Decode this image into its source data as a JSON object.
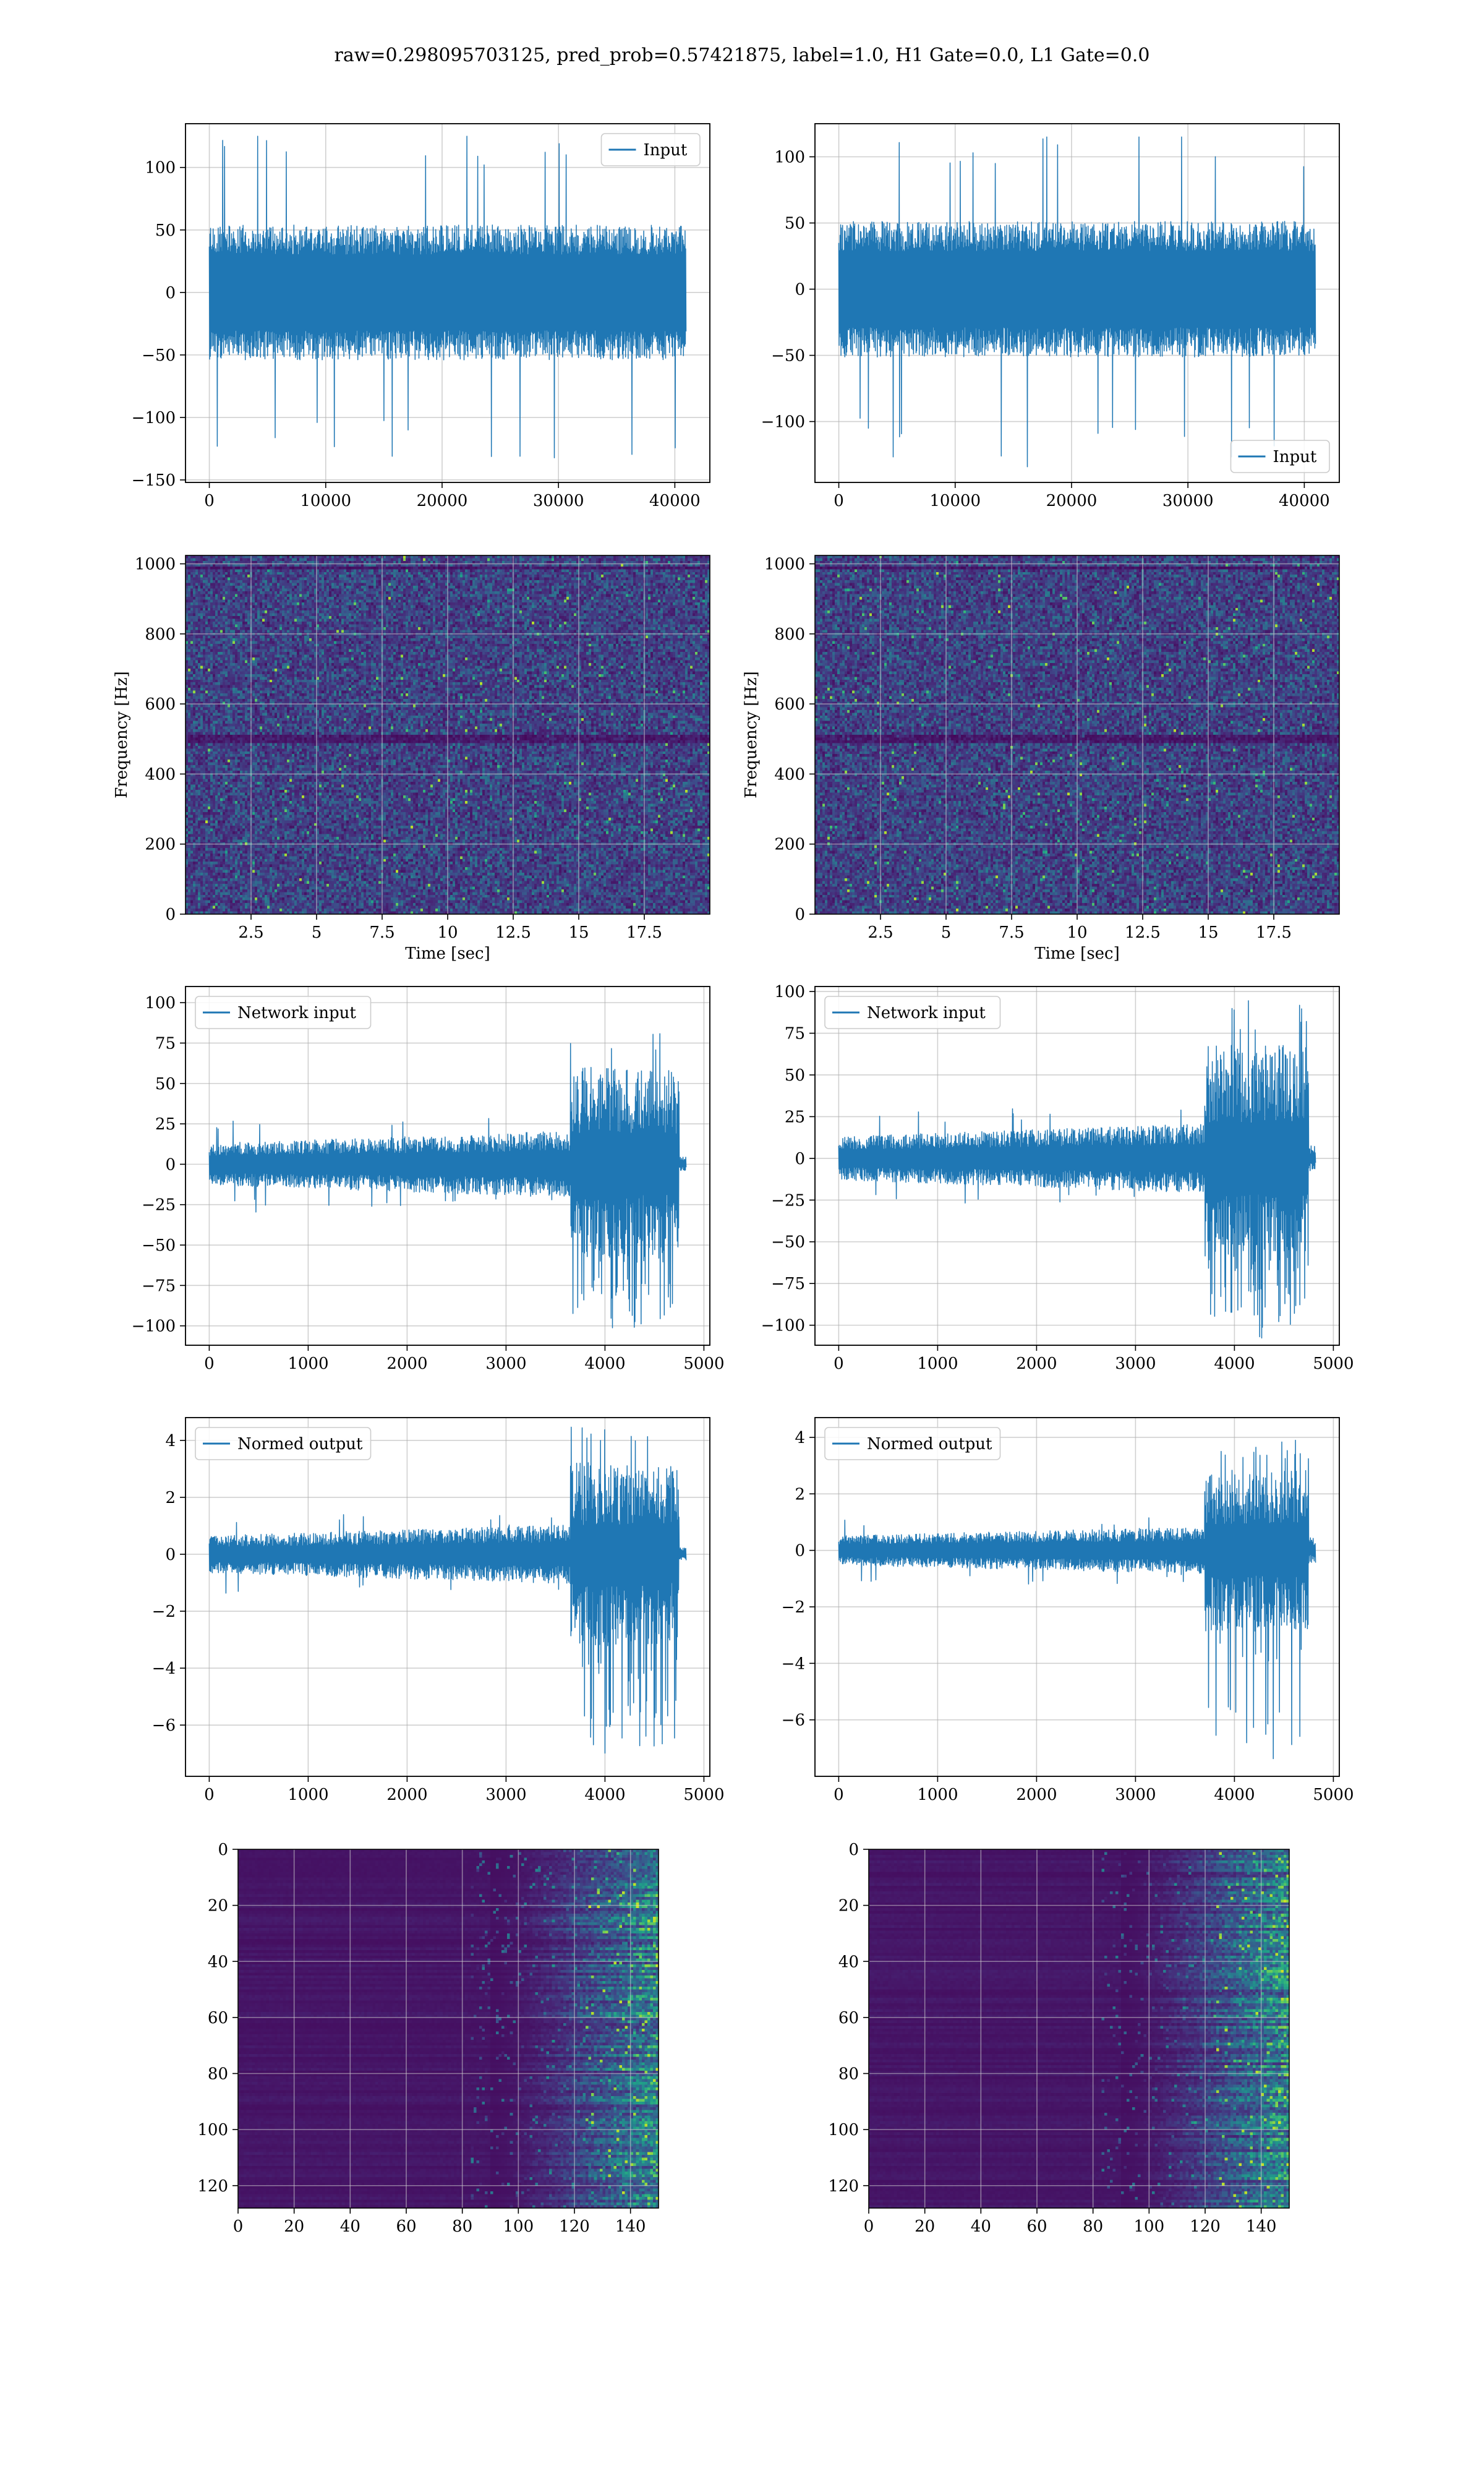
{
  "figure": {
    "suptitle": "raw=0.298095703125, pred_prob=0.57421875, label=1.0, H1 Gate=0.0, L1 Gate=0.0"
  },
  "colors": {
    "line": "#1f77b4",
    "grid": "#b0b0b0",
    "viridis_dark": "#440154",
    "viridis_mid": "#31688e",
    "viridis_teal": "#21918c",
    "viridis_green": "#35b779",
    "viridis_yellow": "#fde725"
  },
  "chart_data": [
    {
      "id": "h1-input",
      "type": "line",
      "legend": "Input",
      "legend_loc": "top-right",
      "grid": true,
      "x_range": [
        0,
        40960
      ],
      "xlim": [
        -2048,
        43008
      ],
      "ylim": [
        -152,
        135
      ],
      "xticks": [
        0,
        10000,
        20000,
        30000,
        40000
      ],
      "yticks": [
        -150,
        -100,
        -50,
        0,
        50,
        100
      ],
      "signal": {
        "kind": "noise",
        "spread": 40,
        "peak_max": 125,
        "peak_min": -140,
        "points": 1500
      }
    },
    {
      "id": "l1-input",
      "type": "line",
      "legend": "Input",
      "legend_loc": "bottom-right",
      "grid": true,
      "x_range": [
        0,
        40960
      ],
      "xlim": [
        -2048,
        43008
      ],
      "ylim": [
        -146,
        125
      ],
      "xticks": [
        0,
        10000,
        20000,
        30000,
        40000
      ],
      "yticks": [
        -100,
        -50,
        0,
        50,
        100
      ],
      "signal": {
        "kind": "noise",
        "spread": 38,
        "peak_max": 115,
        "peak_min": -135,
        "points": 1500
      }
    },
    {
      "id": "h1-spectrogram",
      "type": "heatmap",
      "grid": true,
      "xlabel": "Time [sec]",
      "ylabel": "Frequency [Hz]",
      "xlim": [
        0,
        20
      ],
      "ylim": [
        0,
        1024
      ],
      "xticks": [
        2.5,
        5.0,
        7.5,
        10.0,
        12.5,
        15.0,
        17.5
      ],
      "yticks": [
        0,
        200,
        400,
        600,
        800,
        1000
      ]
    },
    {
      "id": "l1-spectrogram",
      "type": "heatmap",
      "grid": true,
      "xlabel": "Time [sec]",
      "ylabel": "Frequency [Hz]",
      "xlim": [
        0,
        20
      ],
      "ylim": [
        0,
        1024
      ],
      "xticks": [
        2.5,
        5.0,
        7.5,
        10.0,
        12.5,
        15.0,
        17.5
      ],
      "yticks": [
        0,
        200,
        400,
        600,
        800,
        1000
      ]
    },
    {
      "id": "h1-network-input",
      "type": "line",
      "legend": "Network input",
      "legend_loc": "top-left",
      "grid": true,
      "x_range": [
        0,
        4820
      ],
      "xlim": [
        -240,
        5060
      ],
      "ylim": [
        -112,
        110
      ],
      "xticks": [
        0,
        1000,
        2000,
        3000,
        4000,
        5000
      ],
      "yticks": [
        -100,
        -75,
        -50,
        -25,
        0,
        25,
        50,
        75,
        100
      ],
      "signal": {
        "kind": "burst",
        "base": 10,
        "base_peak": 30,
        "burst_start": 3650,
        "burst_end": 4750,
        "burst_peak": 85,
        "burst_min": -102,
        "tail": 3,
        "points": 1400
      }
    },
    {
      "id": "l1-network-input",
      "type": "line",
      "legend": "Network input",
      "legend_loc": "top-left",
      "grid": true,
      "x_range": [
        0,
        4820
      ],
      "xlim": [
        -240,
        5060
      ],
      "ylim": [
        -112,
        103
      ],
      "xticks": [
        0,
        1000,
        2000,
        3000,
        4000,
        5000
      ],
      "yticks": [
        -100,
        -75,
        -50,
        -25,
        0,
        25,
        50,
        75,
        100
      ],
      "signal": {
        "kind": "burst",
        "base": 10,
        "base_peak": 30,
        "burst_start": 3700,
        "burst_end": 4750,
        "burst_peak": 95,
        "burst_min": -108,
        "tail": 5,
        "points": 1400
      }
    },
    {
      "id": "h1-normed-output",
      "type": "line",
      "legend": "Normed output",
      "legend_loc": "top-left",
      "grid": true,
      "x_range": [
        0,
        4820
      ],
      "xlim": [
        -240,
        5060
      ],
      "ylim": [
        -7.8,
        4.8
      ],
      "xticks": [
        0,
        1000,
        2000,
        3000,
        4000,
        5000
      ],
      "yticks": [
        -6,
        -4,
        -2,
        0,
        2,
        4
      ],
      "signal": {
        "kind": "burst",
        "base": 0.5,
        "base_peak": 1.4,
        "burst_start": 3650,
        "burst_end": 4750,
        "burst_peak": 4.5,
        "burst_min": -7.3,
        "tail": 0.15,
        "points": 1400
      }
    },
    {
      "id": "l1-normed-output",
      "type": "line",
      "legend": "Normed output",
      "legend_loc": "top-left",
      "grid": true,
      "x_range": [
        0,
        4820
      ],
      "xlim": [
        -240,
        5060
      ],
      "ylim": [
        -8.0,
        4.7
      ],
      "xticks": [
        0,
        1000,
        2000,
        3000,
        4000,
        5000
      ],
      "yticks": [
        -6,
        -4,
        -2,
        0,
        2,
        4
      ],
      "signal": {
        "kind": "burst",
        "base": 0.4,
        "base_peak": 1.2,
        "burst_start": 3700,
        "burst_end": 4750,
        "burst_peak": 4.0,
        "burst_min": -7.4,
        "tail": 0.3,
        "points": 1400
      }
    },
    {
      "id": "h1-feature-map",
      "type": "heatmap",
      "grid": true,
      "y_inverted": true,
      "xlim": [
        0,
        150
      ],
      "ylim": [
        0,
        128
      ],
      "xticks": [
        0,
        20,
        40,
        60,
        80,
        100,
        120,
        140
      ],
      "yticks": [
        0,
        20,
        40,
        60,
        80,
        100,
        120
      ]
    },
    {
      "id": "l1-feature-map",
      "type": "heatmap",
      "grid": true,
      "y_inverted": true,
      "xlim": [
        0,
        150
      ],
      "ylim": [
        0,
        128
      ],
      "xticks": [
        0,
        20,
        40,
        60,
        80,
        100,
        120,
        140
      ],
      "yticks": [
        0,
        20,
        40,
        60,
        80,
        100,
        120
      ]
    }
  ]
}
